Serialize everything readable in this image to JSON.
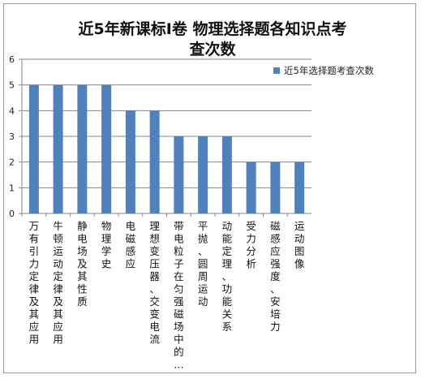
{
  "chart_data": {
    "type": "bar",
    "title_lines": [
      "近5年新课标Ⅰ卷 物理选择题各知识点考",
      "查次数"
    ],
    "categories": [
      "万有引力定律及其应用",
      "牛顿运动定律及其应用",
      "静电场及其性质",
      "物理学史",
      "电磁感应",
      "理想变压器、交变电流",
      "带电粒子在匀强磁场中的…",
      "平抛、圆周运动",
      "动能定理、功能关系",
      "受力分析",
      "磁感应强度、安培力",
      "运动图像"
    ],
    "series": [
      {
        "name": "近5年选择题考查次数",
        "values": [
          5,
          5,
          5,
          5,
          4,
          4,
          3,
          3,
          3,
          2,
          2,
          2
        ]
      }
    ],
    "ylim": [
      0,
      6
    ],
    "yticks": [
      "0",
      "1",
      "2",
      "3",
      "4",
      "5",
      "6"
    ],
    "grid": true,
    "legend_position": "right",
    "colors": {
      "bar": "#4f81bd",
      "grid": "#868686",
      "axis": "#868686"
    }
  }
}
